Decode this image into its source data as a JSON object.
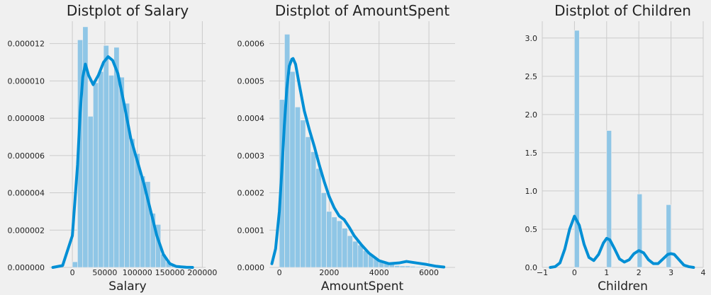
{
  "colors": {
    "background": "#f0f0f0",
    "grid": "#cbcbcb",
    "bar": "#8fc6e6",
    "kde": "#008fd5"
  },
  "chart_data": [
    {
      "type": "bar",
      "title": "Distplot of Salary",
      "xlabel": "Salary",
      "ylabel": "",
      "xlim": [
        -35000,
        205000
      ],
      "ylim": [
        0,
        1.32e-05
      ],
      "grid": true,
      "xticks": [
        0,
        50000,
        100000,
        150000,
        200000
      ],
      "xtick_labels": [
        "0",
        "50000",
        "100000",
        "150000",
        "200000"
      ],
      "yticks": [
        0,
        2e-06,
        4e-06,
        6e-06,
        8e-06,
        1e-05,
        1.2e-05
      ],
      "ytick_labels": [
        "0.000000",
        "0.000002",
        "0.000004",
        "0.000006",
        "0.000008",
        "0.000010",
        "0.000012"
      ],
      "bins": [
        {
          "x0": 0,
          "x1": 8000,
          "y": 3e-07
        },
        {
          "x0": 8000,
          "x1": 16000,
          "y": 1.22e-05
        },
        {
          "x0": 16000,
          "x1": 24000,
          "y": 1.29e-05
        },
        {
          "x0": 24000,
          "x1": 32000,
          "y": 8.1e-06
        },
        {
          "x0": 32000,
          "x1": 40000,
          "y": 9.9e-06
        },
        {
          "x0": 40000,
          "x1": 48000,
          "y": 1.05e-05
        },
        {
          "x0": 48000,
          "x1": 56000,
          "y": 1.19e-05
        },
        {
          "x0": 56000,
          "x1": 64000,
          "y": 1.03e-05
        },
        {
          "x0": 64000,
          "x1": 72000,
          "y": 1.18e-05
        },
        {
          "x0": 72000,
          "x1": 80000,
          "y": 1.02e-05
        },
        {
          "x0": 80000,
          "x1": 88000,
          "y": 8.8e-06
        },
        {
          "x0": 88000,
          "x1": 96000,
          "y": 6.9e-06
        },
        {
          "x0": 96000,
          "x1": 104000,
          "y": 6.1e-06
        },
        {
          "x0": 104000,
          "x1": 112000,
          "y": 4.9e-06
        },
        {
          "x0": 112000,
          "x1": 120000,
          "y": 4.6e-06
        },
        {
          "x0": 120000,
          "x1": 128000,
          "y": 2.9e-06
        },
        {
          "x0": 128000,
          "x1": 136000,
          "y": 2.3e-06
        },
        {
          "x0": 136000,
          "x1": 144000,
          "y": 7e-07
        },
        {
          "x0": 144000,
          "x1": 152000,
          "y": 3e-07
        },
        {
          "x0": 152000,
          "x1": 160000,
          "y": 1e-07
        },
        {
          "x0": 160000,
          "x1": 168000,
          "y": 5e-08
        }
      ],
      "kde": {
        "x": [
          -30000,
          -15000,
          0,
          8000,
          12000,
          16000,
          20000,
          25000,
          32000,
          40000,
          48000,
          55000,
          62000,
          70000,
          80000,
          90000,
          100000,
          110000,
          120000,
          130000,
          140000,
          150000,
          160000,
          175000,
          185000
        ],
        "y": [
          0,
          1e-07,
          1.7e-06,
          5.5e-06,
          8.3e-06,
          1.02e-05,
          1.09e-05,
          1.03e-05,
          9.8e-06,
          1.03e-05,
          1.1e-05,
          1.13e-05,
          1.11e-05,
          1.04e-05,
          8.7e-06,
          6.9e-06,
          5.7e-06,
          4.5e-06,
          3.1e-06,
          1.7e-06,
          7e-07,
          2e-07,
          5e-08,
          1e-08,
          0
        ]
      }
    },
    {
      "type": "bar",
      "title": "Distplot of AmountSpent",
      "xlabel": "AmountSpent",
      "ylabel": "",
      "xlim": [
        -400,
        7050
      ],
      "ylim": [
        0,
        0.00066
      ],
      "grid": true,
      "xticks": [
        0,
        2000,
        4000,
        6000
      ],
      "xtick_labels": [
        "0",
        "2000",
        "4000",
        "6000"
      ],
      "yticks": [
        0,
        0.0001,
        0.0002,
        0.0003,
        0.0004,
        0.0005,
        0.0006
      ],
      "ytick_labels": [
        "0.0000",
        "0.0001",
        "0.0002",
        "0.0003",
        "0.0004",
        "0.0005",
        "0.0006"
      ],
      "bins": [
        {
          "x0": 0,
          "x1": 210,
          "y": 0.00045
        },
        {
          "x0": 210,
          "x1": 420,
          "y": 0.000625
        },
        {
          "x0": 420,
          "x1": 630,
          "y": 0.000525
        },
        {
          "x0": 630,
          "x1": 840,
          "y": 0.00043
        },
        {
          "x0": 840,
          "x1": 1050,
          "y": 0.000395
        },
        {
          "x0": 1050,
          "x1": 1260,
          "y": 0.00035
        },
        {
          "x0": 1260,
          "x1": 1470,
          "y": 0.00031
        },
        {
          "x0": 1470,
          "x1": 1680,
          "y": 0.000265
        },
        {
          "x0": 1680,
          "x1": 1890,
          "y": 0.0002
        },
        {
          "x0": 1890,
          "x1": 2100,
          "y": 0.00015
        },
        {
          "x0": 2100,
          "x1": 2310,
          "y": 0.000135
        },
        {
          "x0": 2310,
          "x1": 2520,
          "y": 0.000125
        },
        {
          "x0": 2520,
          "x1": 2730,
          "y": 0.000105
        },
        {
          "x0": 2730,
          "x1": 2940,
          "y": 8.5e-05
        },
        {
          "x0": 2940,
          "x1": 3150,
          "y": 7e-05
        },
        {
          "x0": 3150,
          "x1": 3360,
          "y": 6e-05
        },
        {
          "x0": 3360,
          "x1": 3570,
          "y": 4.5e-05
        },
        {
          "x0": 3570,
          "x1": 3780,
          "y": 3.5e-05
        },
        {
          "x0": 3780,
          "x1": 3990,
          "y": 2.5e-05
        },
        {
          "x0": 3990,
          "x1": 4200,
          "y": 1.8e-05
        },
        {
          "x0": 4200,
          "x1": 4410,
          "y": 1.2e-05
        },
        {
          "x0": 4410,
          "x1": 4620,
          "y": 8e-06
        },
        {
          "x0": 4620,
          "x1": 4830,
          "y": 5e-06
        },
        {
          "x0": 4830,
          "x1": 5040,
          "y": 4e-06
        },
        {
          "x0": 5040,
          "x1": 5250,
          "y": 4e-06
        },
        {
          "x0": 5250,
          "x1": 5460,
          "y": 3e-06
        },
        {
          "x0": 5460,
          "x1": 5670,
          "y": 2e-06
        },
        {
          "x0": 5670,
          "x1": 5880,
          "y": 2e-06
        },
        {
          "x0": 5880,
          "x1": 6090,
          "y": 1e-06
        },
        {
          "x0": 6090,
          "x1": 6300,
          "y": 1e-06
        }
      ],
      "kde": {
        "x": [
          -300,
          -150,
          0,
          100,
          200,
          300,
          400,
          500,
          550,
          650,
          800,
          1000,
          1200,
          1400,
          1600,
          1800,
          2000,
          2200,
          2400,
          2600,
          2800,
          3000,
          3300,
          3600,
          4000,
          4400,
          4800,
          5100,
          5500,
          5900,
          6300,
          6600
        ],
        "y": [
          1e-05,
          5e-05,
          0.00015,
          0.00026,
          0.00038,
          0.00048,
          0.00054,
          0.000558,
          0.00056,
          0.000545,
          0.00049,
          0.00042,
          0.00037,
          0.000325,
          0.000275,
          0.00023,
          0.00019,
          0.00016,
          0.000138,
          0.000128,
          0.000108,
          8.5e-05,
          6e-05,
          3.8e-05,
          1.8e-05,
          1e-05,
          1.2e-05,
          1.6e-05,
          1.2e-05,
          8e-06,
          3e-06,
          1e-06
        ]
      }
    },
    {
      "type": "bar",
      "title": "Distplot of Children",
      "xlabel": "Children",
      "ylabel": "",
      "xlim": [
        -1,
        4
      ],
      "ylim": [
        0,
        3.22
      ],
      "grid": true,
      "xticks": [
        -1,
        0,
        1,
        2,
        3,
        4
      ],
      "xtick_labels": [
        "−1",
        "0",
        "1",
        "2",
        "3",
        "4"
      ],
      "yticks": [
        0,
        0.5,
        1.0,
        1.5,
        2.0,
        2.5,
        3.0
      ],
      "ytick_labels": [
        "0.0",
        "0.5",
        "1.0",
        "1.5",
        "2.0",
        "2.5",
        "3.0"
      ],
      "bins": [
        {
          "x0": 0,
          "x1": 0.15,
          "y": 3.1
        },
        {
          "x0": 1,
          "x1": 1.15,
          "y": 1.79
        },
        {
          "x0": 1.95,
          "x1": 2.1,
          "y": 0.96
        },
        {
          "x0": 2.85,
          "x1": 3.0,
          "y": 0.82
        }
      ],
      "kde": {
        "x": [
          -0.75,
          -0.6,
          -0.45,
          -0.3,
          -0.15,
          0,
          0.15,
          0.3,
          0.45,
          0.6,
          0.75,
          0.9,
          1.0,
          1.1,
          1.25,
          1.4,
          1.55,
          1.7,
          1.85,
          2.0,
          2.15,
          2.3,
          2.45,
          2.6,
          2.75,
          2.9,
          3.0,
          3.1,
          3.25,
          3.4,
          3.55,
          3.7
        ],
        "y": [
          0.0,
          0.01,
          0.06,
          0.24,
          0.5,
          0.67,
          0.55,
          0.3,
          0.13,
          0.09,
          0.17,
          0.32,
          0.38,
          0.36,
          0.24,
          0.11,
          0.07,
          0.1,
          0.18,
          0.22,
          0.19,
          0.1,
          0.05,
          0.05,
          0.11,
          0.17,
          0.18,
          0.17,
          0.1,
          0.03,
          0.01,
          0.0
        ]
      }
    }
  ]
}
